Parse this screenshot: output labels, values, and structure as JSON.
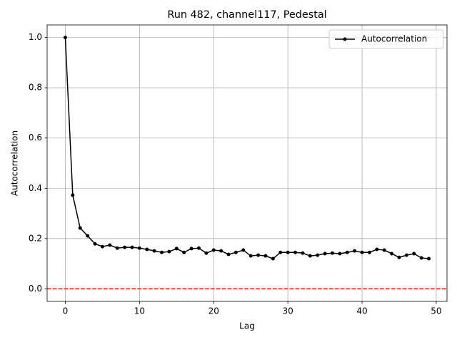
{
  "chart_data": {
    "type": "line",
    "title": "Run 482, channel117, Pedestal",
    "xlabel": "Lag",
    "ylabel": "Autocorrelation",
    "x": [
      0,
      1,
      2,
      3,
      4,
      5,
      6,
      7,
      8,
      9,
      10,
      11,
      12,
      13,
      14,
      15,
      16,
      17,
      18,
      19,
      20,
      21,
      22,
      23,
      24,
      25,
      26,
      27,
      28,
      29,
      30,
      31,
      32,
      33,
      34,
      35,
      36,
      37,
      38,
      39,
      40,
      41,
      42,
      43,
      44,
      45,
      46,
      47,
      48,
      49
    ],
    "series": [
      {
        "name": "Autocorrelation",
        "color": "#000000",
        "values": [
          1.0,
          0.373,
          0.242,
          0.211,
          0.179,
          0.168,
          0.174,
          0.162,
          0.165,
          0.165,
          0.162,
          0.157,
          0.151,
          0.145,
          0.148,
          0.16,
          0.145,
          0.16,
          0.162,
          0.142,
          0.154,
          0.151,
          0.137,
          0.145,
          0.154,
          0.131,
          0.134,
          0.131,
          0.12,
          0.145,
          0.145,
          0.145,
          0.142,
          0.131,
          0.134,
          0.14,
          0.142,
          0.14,
          0.145,
          0.151,
          0.145,
          0.145,
          0.157,
          0.154,
          0.14,
          0.125,
          0.134,
          0.14,
          0.123,
          0.12
        ]
      }
    ],
    "hline": {
      "value": 0,
      "color": "#ff0000"
    },
    "xlim": [
      -2.45,
      51.45
    ],
    "ylim": [
      -0.05,
      1.05
    ],
    "xticks": [
      0,
      10,
      20,
      30,
      40,
      50
    ],
    "yticks": [
      {
        "value": 0,
        "label": "0.0"
      },
      0.2,
      0.4,
      0.6,
      0.8,
      {
        "value": 1,
        "label": "1.0"
      }
    ],
    "grid": true,
    "legend": "upper right"
  }
}
